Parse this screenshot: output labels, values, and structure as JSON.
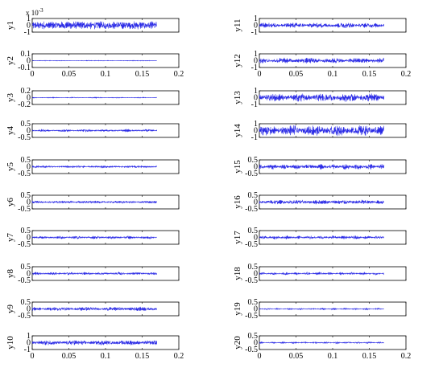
{
  "colors": {
    "signal": "#2a2ae6",
    "axes": "#000000",
    "background": "#ffffff"
  },
  "chart_data": {
    "type": "line",
    "layout": "10 rows x 2 columns of signal subplots",
    "xlim": [
      0,
      0.2
    ],
    "xticks": [
      0,
      0.05,
      0.1,
      0.15,
      0.2
    ],
    "xtick_labels": [
      "0",
      "0.05",
      "0.1",
      "0.15",
      "0.2"
    ],
    "xtick_label_rows": [
      2,
      10
    ],
    "signal_x_range": [
      0,
      0.17
    ],
    "subplots": [
      {
        "label": "y1",
        "ylim": [
          -1,
          1
        ],
        "yticks": [
          "1",
          "0",
          "-1"
        ],
        "sci_label": "x 10",
        "sci_exp": "-3",
        "amplitude": 0.55,
        "pattern": "dense"
      },
      {
        "label": "y2",
        "ylim": [
          -0.1,
          0.1
        ],
        "yticks": [
          "0.1",
          "0",
          "-0.1"
        ],
        "amplitude": 0.045,
        "pattern": "beat"
      },
      {
        "label": "y3",
        "ylim": [
          -0.2,
          0.2
        ],
        "yticks": [
          "0.2",
          "0",
          "-0.2"
        ],
        "amplitude": 0.07,
        "pattern": "bursts"
      },
      {
        "label": "y4",
        "ylim": [
          -0.5,
          0.5
        ],
        "yticks": [
          "0.5",
          "0",
          "-0.5"
        ],
        "amplitude": 0.18,
        "pattern": "bursts"
      },
      {
        "label": "y5",
        "ylim": [
          -0.5,
          0.5
        ],
        "yticks": [
          "0.5",
          "0",
          "-0.5"
        ],
        "amplitude": 0.15,
        "pattern": "noise"
      },
      {
        "label": "y6",
        "ylim": [
          -0.5,
          0.5
        ],
        "yticks": [
          "0.5",
          "0",
          "-0.5"
        ],
        "amplitude": 0.18,
        "pattern": "noise"
      },
      {
        "label": "y7",
        "ylim": [
          -0.5,
          0.5
        ],
        "yticks": [
          "0.5",
          "0",
          "-0.5"
        ],
        "amplitude": 0.22,
        "pattern": "bursts"
      },
      {
        "label": "y8",
        "ylim": [
          -0.5,
          0.5
        ],
        "yticks": [
          "0.5",
          "0",
          "-0.5"
        ],
        "amplitude": 0.22,
        "pattern": "bursts"
      },
      {
        "label": "y9",
        "ylim": [
          -0.5,
          0.5
        ],
        "yticks": [
          "0.5",
          "0",
          "-0.5"
        ],
        "amplitude": 0.28,
        "pattern": "noise"
      },
      {
        "label": "y10",
        "ylim": [
          -1,
          1
        ],
        "yticks": [
          "1",
          "0",
          "-1"
        ],
        "amplitude": 0.35,
        "pattern": "noise"
      },
      {
        "label": "y11",
        "ylim": [
          -1,
          1
        ],
        "yticks": [
          "1",
          "0",
          "-1"
        ],
        "amplitude": 0.38,
        "pattern": "noise"
      },
      {
        "label": "y12",
        "ylim": [
          -1,
          1
        ],
        "yticks": [
          "1",
          "0",
          "-1"
        ],
        "amplitude": 0.4,
        "pattern": "noise"
      },
      {
        "label": "y13",
        "ylim": [
          -1,
          1
        ],
        "yticks": [
          "1",
          "0",
          "-1"
        ],
        "amplitude": 0.6,
        "pattern": "noise"
      },
      {
        "label": "y14",
        "ylim": [
          -1,
          1
        ],
        "yticks": [
          "1",
          "0",
          "-1"
        ],
        "amplitude": 0.75,
        "pattern": "noise"
      },
      {
        "label": "y15",
        "ylim": [
          -0.5,
          0.5
        ],
        "yticks": [
          "0.5",
          "0",
          "-0.5"
        ],
        "amplitude": 0.42,
        "pattern": "bursts"
      },
      {
        "label": "y16",
        "ylim": [
          -0.5,
          0.5
        ],
        "yticks": [
          "0.5",
          "0",
          "-0.5"
        ],
        "amplitude": 0.33,
        "pattern": "noise"
      },
      {
        "label": "y17",
        "ylim": [
          -0.5,
          0.5
        ],
        "yticks": [
          "0.5",
          "0",
          "-0.5"
        ],
        "amplitude": 0.28,
        "pattern": "bursts"
      },
      {
        "label": "y18",
        "ylim": [
          -0.5,
          0.5
        ],
        "yticks": [
          "0.5",
          "0",
          "-0.5"
        ],
        "amplitude": 0.22,
        "pattern": "sparse"
      },
      {
        "label": "y19",
        "ylim": [
          -0.5,
          0.5
        ],
        "yticks": [
          "0.5",
          "0",
          "-0.5"
        ],
        "amplitude": 0.14,
        "pattern": "sparse"
      },
      {
        "label": "y20",
        "ylim": [
          -0.5,
          0.5
        ],
        "yticks": [
          "0.5",
          "0",
          "-0.5"
        ],
        "amplitude": 0.14,
        "pattern": "sparse"
      }
    ]
  }
}
